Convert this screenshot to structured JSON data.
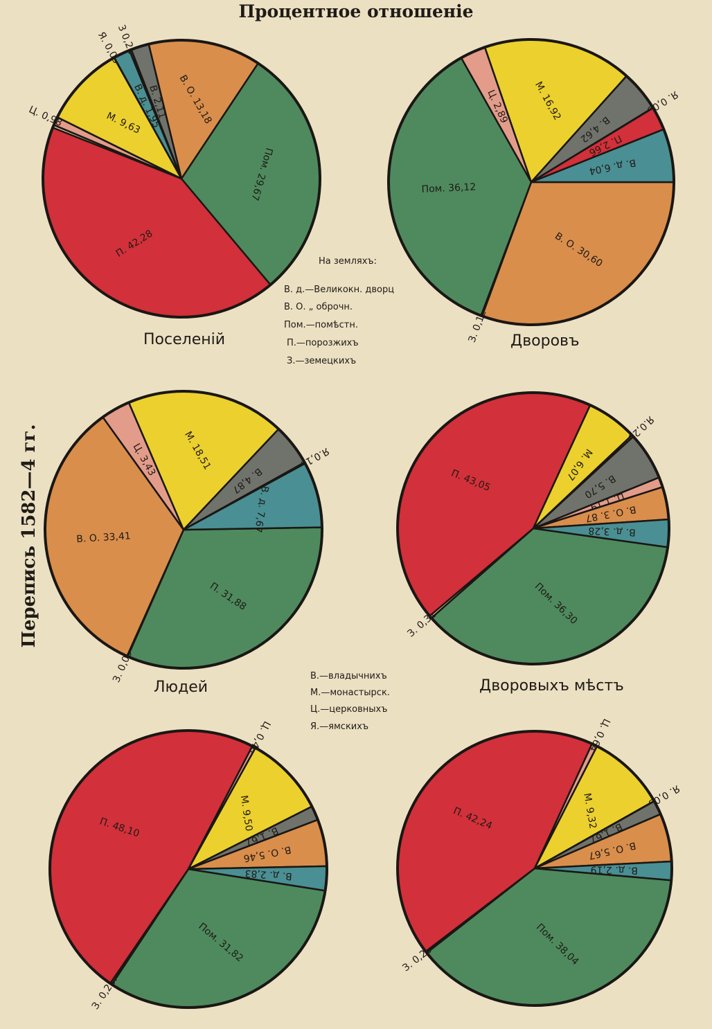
{
  "page_title": "Процентное отношеніе",
  "side_title": "Перепись 1582—4 гг.",
  "legend_lands": {
    "heading": "На земляхъ:",
    "items": [
      "В. д.—Великокн. дворц",
      "В. О.    „   оброчн.",
      "Пом.—помѣстн.",
      "П.—порозжихъ",
      "З.—земецкихъ"
    ]
  },
  "legend_owners": {
    "items": [
      "В.—владычнихъ",
      "М.—монастырск.",
      "Ц.—церковныхъ",
      "Я.—ямскихъ"
    ]
  },
  "colors": {
    "П": "#d2303a",
    "Пом": "#4e8a5e",
    "В.О": "#d98e4c",
    "В": "#6f736b",
    "В.д": "#4a8f93",
    "З": "#e8c79a",
    "Я": "#e7d24b",
    "М": "#ecd02e",
    "Ц": "#e39c8a",
    "border": "#1a1714"
  },
  "chart_data": [
    {
      "type": "pie",
      "title": "Поселеній",
      "slices": [
        {
          "label": "П.",
          "value": 42.28,
          "color": "П",
          "text": "П. 42,28"
        },
        {
          "label": "З.",
          "value": 0.33,
          "color": "З",
          "text": ""
        },
        {
          "label": "Ц.",
          "value": 0.98,
          "color": "Ц",
          "text": "Ц. 0,98"
        },
        {
          "label": "М.",
          "value": 9.63,
          "color": "М",
          "text": "М. 9,63"
        },
        {
          "label": "Я.",
          "value": 0.03,
          "color": "Я",
          "text": "Я. 0,03"
        },
        {
          "label": "В. д.",
          "value": 1.95,
          "color": "В.д",
          "text": "В. д. 1,95"
        },
        {
          "label": "З",
          "value": 0.22,
          "color": "З",
          "text": "3 0,22"
        },
        {
          "label": "В.",
          "value": 2.11,
          "color": "В",
          "text": "В. 2,11"
        },
        {
          "label": "В. О.",
          "value": 13.18,
          "color": "В.О",
          "text": "В. О. 13,18"
        },
        {
          "label": "Пом.",
          "value": 29.67,
          "color": "Пом",
          "text": "Пом. 29,67"
        }
      ]
    },
    {
      "type": "pie",
      "title": "Дворовъ",
      "slices": [
        {
          "label": "В. О.",
          "value": 30.6,
          "color": "В.О",
          "text": "В. О. 30,60"
        },
        {
          "label": "З.",
          "value": 0.12,
          "color": "З",
          "text": "З. 0,12"
        },
        {
          "label": "Пом.",
          "value": 36.12,
          "color": "Пом",
          "text": "Пом. 36,12"
        },
        {
          "label": "Ц.",
          "value": 2.89,
          "color": "Ц",
          "text": "Ц. 2,89"
        },
        {
          "label": "М.",
          "value": 16.92,
          "color": "М",
          "text": "М. 16,92"
        },
        {
          "label": "В.",
          "value": 4.62,
          "color": "В",
          "text": "В. 4,62"
        },
        {
          "label": "Я.",
          "value": 0.03,
          "color": "Я",
          "text": "Я. 0,03"
        },
        {
          "label": "П.",
          "value": 2.66,
          "color": "П",
          "text": "П. 2,66"
        },
        {
          "label": "В. д.",
          "value": 6.04,
          "color": "В.д",
          "text": "В. д. 6,04"
        }
      ]
    },
    {
      "type": "pie",
      "title": "Людей",
      "slices": [
        {
          "label": "П.",
          "value": 31.88,
          "color": "Пом",
          "text": "П. 31,88"
        },
        {
          "label": "З.",
          "value": 0.09,
          "color": "З",
          "text": "З. 0,09"
        },
        {
          "label": "В. О.",
          "value": 33.41,
          "color": "В.О",
          "text": "В. О. 33,41"
        },
        {
          "label": "Ц.",
          "value": 3.43,
          "color": "Ц",
          "text": "Ц. 3,43"
        },
        {
          "label": "М.",
          "value": 18.51,
          "color": "М",
          "text": "М. 18,51"
        },
        {
          "label": "В.",
          "value": 4.87,
          "color": "В",
          "text": "В. 4,87"
        },
        {
          "label": "Я.",
          "value": 0.14,
          "color": "Я",
          "text": "Я.0,14"
        },
        {
          "label": "В. д.",
          "value": 7.67,
          "color": "В.д",
          "text": "В. д. 7,67"
        }
      ]
    },
    {
      "type": "pie",
      "title": "Дворовыхъ мѣстъ",
      "slices": [
        {
          "label": "Пом.",
          "value": 36.3,
          "color": "Пом",
          "text": "Пом. 36,30"
        },
        {
          "label": "З.",
          "value": 0.31,
          "color": "З",
          "text": "З. 0,31"
        },
        {
          "label": "П.",
          "value": 43.05,
          "color": "П",
          "text": "П. 43,05"
        },
        {
          "label": "М.",
          "value": 6.07,
          "color": "М",
          "text": "М. 6,07"
        },
        {
          "label": "Я.",
          "value": 0.23,
          "color": "Я",
          "text": "Я.0,23"
        },
        {
          "label": "В.",
          "value": 5.7,
          "color": "В",
          "text": "В. 5,70"
        },
        {
          "label": "Ц.",
          "value": 1.19,
          "color": "Ц",
          "text": "Ц. 1,19"
        },
        {
          "label": "В. О.",
          "value": 3.87,
          "color": "В.О",
          "text": "В. О. 3. 87"
        },
        {
          "label": "В. д.",
          "value": 3.28,
          "color": "В.д",
          "text": "В. д. 3,28"
        }
      ]
    },
    {
      "type": "pie",
      "title": "",
      "slices": [
        {
          "label": "Пом.",
          "value": 31.82,
          "color": "Пом",
          "text": "Пом. 31,82"
        },
        {
          "label": "З.",
          "value": 0.22,
          "color": "З",
          "text": "З. 0,22."
        },
        {
          "label": "П.",
          "value": 48.1,
          "color": "П",
          "text": "П. 48,10"
        },
        {
          "label": "Ц.",
          "value": 0.4,
          "color": "Ц",
          "text": "Ц. 0,40"
        },
        {
          "label": "М.",
          "value": 9.5,
          "color": "М",
          "text": "М. 9,50"
        },
        {
          "label": "В.",
          "value": 1.67,
          "color": "В",
          "text": "В. 1,67"
        },
        {
          "label": "В. О.",
          "value": 5.46,
          "color": "В.О",
          "text": "В. О. 5,46"
        },
        {
          "label": "В. д.",
          "value": 2.83,
          "color": "В.д",
          "text": "В. д. 2,83"
        }
      ]
    },
    {
      "type": "pie",
      "title": "",
      "slices": [
        {
          "label": "Пом.",
          "value": 38.04,
          "color": "Пом",
          "text": "Пом. 38,04"
        },
        {
          "label": "З.",
          "value": 0.2,
          "color": "З",
          "text": "З. 0,20"
        },
        {
          "label": "П.",
          "value": 42.24,
          "color": "П",
          "text": "П. 42,24"
        },
        {
          "label": "Ц.",
          "value": 0.64,
          "color": "Ц",
          "text": "Ц. 0,64"
        },
        {
          "label": "М.",
          "value": 9.32,
          "color": "М",
          "text": "М. 9,32"
        },
        {
          "label": "Я.",
          "value": 0.03,
          "color": "Я",
          "text": "Я. 0,03"
        },
        {
          "label": "В.",
          "value": 1.67,
          "color": "В",
          "text": "В. 1,67"
        },
        {
          "label": "В. О.",
          "value": 5.67,
          "color": "В.О",
          "text": "В. О. 5,67"
        },
        {
          "label": "В. д.",
          "value": 2.19,
          "color": "В.д",
          "text": "В. д. 2,19"
        }
      ]
    }
  ]
}
